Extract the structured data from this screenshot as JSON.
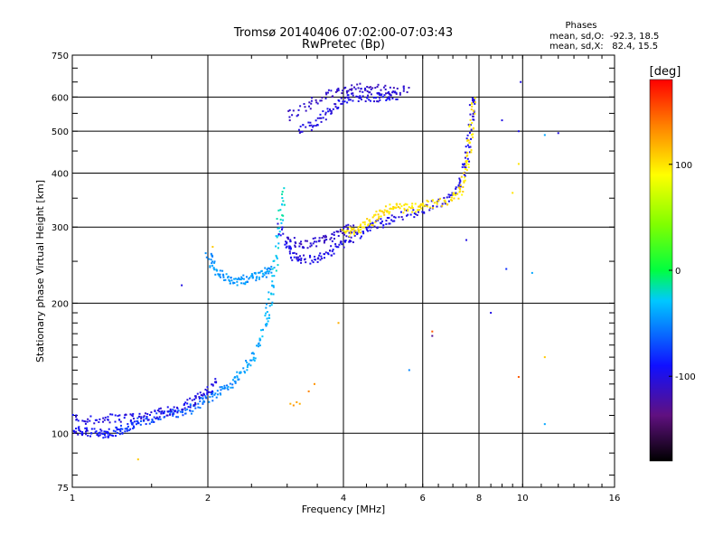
{
  "chart_data": {
    "type": "scatter",
    "title": "Tromsø 20140406 07:02:00-07:03:43",
    "subtitle": "RwPretec (Bp)",
    "xlabel": "Frequency [MHz]",
    "ylabel": "Stationary phase Virtual Height [km]",
    "xscale": "log2",
    "yscale": "log",
    "xlim": [
      1,
      16
    ],
    "ylim": [
      75,
      750
    ],
    "x_ticks": [
      1,
      2,
      4,
      6,
      8,
      10,
      16
    ],
    "x_tick_labels": [
      "1",
      "2",
      "4",
      "6",
      "8",
      "10",
      "16"
    ],
    "y_ticks": [
      75,
      100,
      200,
      300,
      400,
      500,
      600,
      750
    ],
    "y_tick_labels": [
      "75",
      "100",
      "200",
      "300",
      "400",
      "500",
      "600",
      "750"
    ],
    "grid": true,
    "phase_header": "Phases",
    "phase_stats": [
      "mean, sd,O:  -92.3, 18.5",
      "mean, sd,X:   82.4, 15.5"
    ],
    "colorbar": {
      "label": "[deg]",
      "range": [
        -180,
        180
      ],
      "tick_values": [
        100,
        0,
        -100
      ],
      "tick_labels": [
        "100",
        "0",
        "-100"
      ]
    },
    "point_color_default": "#2020e0",
    "series": [
      {
        "trace": [
          [
            1.0,
            102
          ],
          [
            1.05,
            101
          ],
          [
            1.1,
            100
          ],
          [
            1.15,
            100
          ],
          [
            1.2,
            100
          ],
          [
            1.25,
            101
          ],
          [
            1.3,
            102
          ],
          [
            1.35,
            104
          ],
          [
            1.4,
            106
          ],
          [
            1.5,
            108
          ],
          [
            1.6,
            110
          ],
          [
            1.7,
            111
          ],
          [
            1.8,
            113
          ],
          [
            1.9,
            116
          ],
          [
            2.0,
            120
          ],
          [
            2.1,
            124
          ],
          [
            2.2,
            128
          ],
          [
            2.3,
            134
          ],
          [
            2.4,
            140
          ],
          [
            2.5,
            148
          ],
          [
            2.6,
            160
          ],
          [
            2.7,
            180
          ],
          [
            2.75,
            200
          ],
          [
            2.8,
            230
          ],
          [
            2.85,
            270
          ],
          [
            2.9,
            320
          ],
          [
            2.95,
            370
          ]
        ],
        "phase": -100,
        "phase_end": -20
      },
      {
        "trace": [
          [
            1.0,
            108
          ],
          [
            1.1,
            107
          ],
          [
            1.2,
            108
          ],
          [
            1.3,
            108
          ],
          [
            1.4,
            109
          ],
          [
            1.5,
            110
          ],
          [
            1.6,
            112
          ],
          [
            1.7,
            113
          ],
          [
            1.8,
            116
          ],
          [
            1.9,
            120
          ],
          [
            2.0,
            126
          ],
          [
            2.1,
            132
          ]
        ],
        "phase": -100
      },
      {
        "trace": [
          [
            2.0,
            260
          ],
          [
            2.05,
            245
          ],
          [
            2.1,
            235
          ],
          [
            2.2,
            228
          ],
          [
            2.3,
            225
          ],
          [
            2.4,
            226
          ],
          [
            2.5,
            228
          ],
          [
            2.6,
            232
          ],
          [
            2.7,
            236
          ],
          [
            2.75,
            240
          ]
        ],
        "phase": -45
      },
      {
        "trace": [
          [
            2.9,
            300
          ],
          [
            3.0,
            270
          ],
          [
            3.1,
            258
          ],
          [
            3.2,
            252
          ],
          [
            3.4,
            252
          ],
          [
            3.6,
            258
          ],
          [
            3.8,
            265
          ],
          [
            4.0,
            275
          ],
          [
            4.2,
            285
          ],
          [
            4.5,
            295
          ],
          [
            4.8,
            305
          ],
          [
            5.0,
            310
          ],
          [
            5.5,
            320
          ],
          [
            6.0,
            330
          ],
          [
            6.5,
            340
          ],
          [
            7.0,
            360
          ],
          [
            7.3,
            380
          ],
          [
            7.5,
            420
          ],
          [
            7.6,
            480
          ],
          [
            7.7,
            550
          ],
          [
            7.75,
            610
          ]
        ],
        "phase": -100
      },
      {
        "trace": [
          [
            3.0,
            280
          ],
          [
            3.2,
            275
          ],
          [
            3.4,
            275
          ],
          [
            3.6,
            280
          ],
          [
            3.8,
            285
          ],
          [
            4.0,
            295
          ],
          [
            4.2,
            300
          ]
        ],
        "phase": -110
      },
      {
        "trace": [
          [
            4.0,
            290
          ],
          [
            4.2,
            295
          ],
          [
            4.4,
            300
          ],
          [
            4.6,
            310
          ],
          [
            4.8,
            320
          ],
          [
            5.0,
            330
          ],
          [
            5.2,
            335
          ],
          [
            5.5,
            330
          ],
          [
            5.8,
            333
          ],
          [
            6.0,
            338
          ],
          [
            6.5,
            340
          ],
          [
            7.0,
            350
          ],
          [
            7.3,
            365
          ],
          [
            7.5,
            400
          ],
          [
            7.6,
            450
          ],
          [
            7.7,
            520
          ],
          [
            7.8,
            600
          ]
        ],
        "phase": 100
      },
      {
        "trace": [
          [
            3.2,
            505
          ],
          [
            3.4,
            515
          ],
          [
            3.6,
            540
          ],
          [
            3.8,
            570
          ],
          [
            4.0,
            590
          ],
          [
            4.2,
            600
          ],
          [
            4.5,
            600
          ],
          [
            4.8,
            600
          ],
          [
            5.0,
            600
          ],
          [
            5.3,
            605
          ]
        ],
        "phase": -100
      },
      {
        "trace": [
          [
            3.0,
            540
          ],
          [
            3.3,
            570
          ],
          [
            3.6,
            600
          ],
          [
            3.9,
            620
          ],
          [
            4.2,
            630
          ],
          [
            4.5,
            630
          ],
          [
            4.8,
            625
          ],
          [
            5.2,
            620
          ],
          [
            5.6,
            620
          ]
        ],
        "phase": -110
      }
    ],
    "isolated_points": [
      {
        "x": 3.05,
        "y": 117,
        "phase": 120
      },
      {
        "x": 3.1,
        "y": 116,
        "phase": 130
      },
      {
        "x": 3.15,
        "y": 118,
        "phase": 125
      },
      {
        "x": 3.2,
        "y": 117,
        "phase": 120
      },
      {
        "x": 3.35,
        "y": 125,
        "phase": 135
      },
      {
        "x": 3.45,
        "y": 130,
        "phase": 130
      },
      {
        "x": 1.4,
        "y": 87,
        "phase": 110
      },
      {
        "x": 2.05,
        "y": 270,
        "phase": 110
      },
      {
        "x": 6.3,
        "y": 168,
        "phase": -130
      },
      {
        "x": 6.3,
        "y": 172,
        "phase": 150
      },
      {
        "x": 7.5,
        "y": 280,
        "phase": -100
      },
      {
        "x": 8.5,
        "y": 190,
        "phase": -100
      },
      {
        "x": 9.2,
        "y": 240,
        "phase": -80
      },
      {
        "x": 9.5,
        "y": 360,
        "phase": 100
      },
      {
        "x": 9.8,
        "y": 420,
        "phase": 100
      },
      {
        "x": 9.8,
        "y": 500,
        "phase": -100
      },
      {
        "x": 9.9,
        "y": 650,
        "phase": -100
      },
      {
        "x": 9.8,
        "y": 135,
        "phase": 150
      },
      {
        "x": 10.5,
        "y": 235,
        "phase": -40
      },
      {
        "x": 11.2,
        "y": 490,
        "phase": -40
      },
      {
        "x": 11.2,
        "y": 150,
        "phase": 110
      },
      {
        "x": 11.2,
        "y": 105,
        "phase": -40
      },
      {
        "x": 12.0,
        "y": 495,
        "phase": -100
      },
      {
        "x": 5.6,
        "y": 140,
        "phase": -50
      },
      {
        "x": 3.9,
        "y": 180,
        "phase": 120
      },
      {
        "x": 1.75,
        "y": 220,
        "phase": -100
      },
      {
        "x": 9.0,
        "y": 530,
        "phase": -100
      }
    ]
  }
}
